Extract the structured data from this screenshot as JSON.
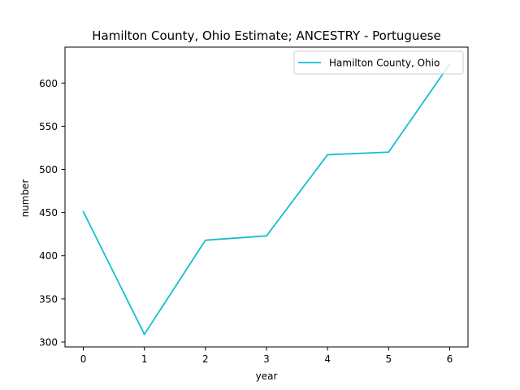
{
  "chart_data": {
    "type": "line",
    "title": "Hamilton County, Ohio Estimate; ANCESTRY - Portuguese",
    "xlabel": "year",
    "ylabel": "number",
    "x": [
      0,
      1,
      2,
      3,
      4,
      5,
      6
    ],
    "series": [
      {
        "name": "Hamilton County, Ohio",
        "color": "#17becf",
        "values": [
          451,
          309,
          418,
          423,
          517,
          520,
          622
        ]
      }
    ],
    "xlim": [
      -0.3,
      6.3
    ],
    "ylim": [
      294.35,
      641.65
    ],
    "xticks": [
      0,
      1,
      2,
      3,
      4,
      5,
      6
    ],
    "yticks": [
      300,
      350,
      400,
      450,
      500,
      550,
      600
    ],
    "grid": false,
    "legend_position": "top-right"
  }
}
